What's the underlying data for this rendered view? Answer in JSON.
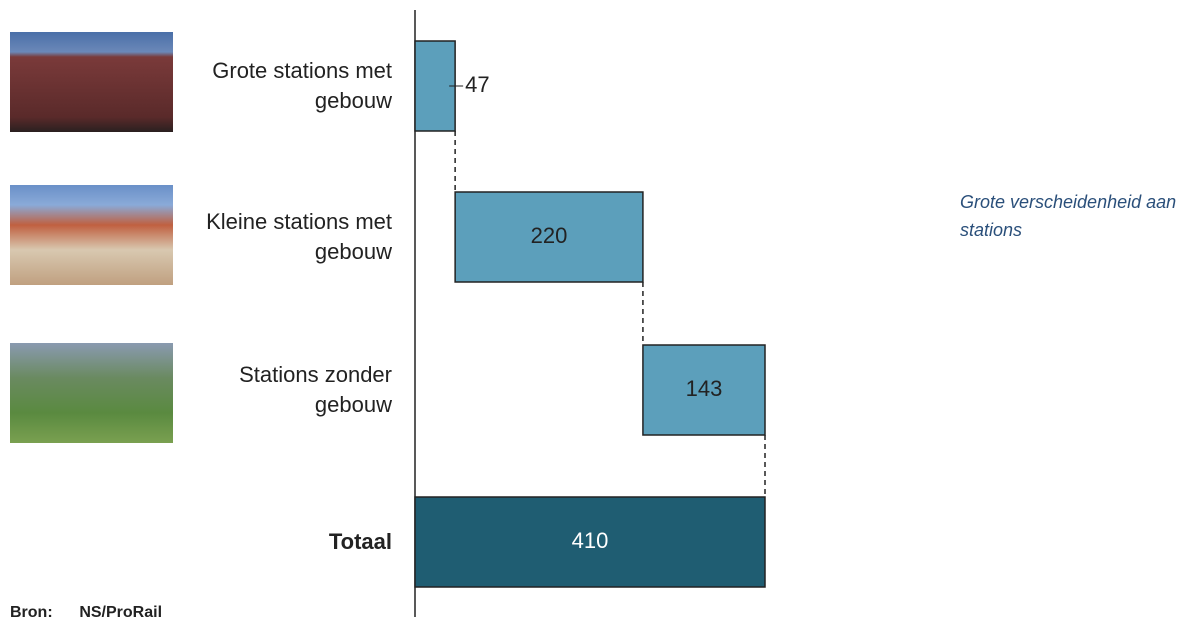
{
  "chart_data": {
    "type": "waterfall",
    "categories": [
      "Grote stations met gebouw",
      "Kleine stations met gebouw",
      "Stations zonder gebouw",
      "Totaal"
    ],
    "values": [
      47,
      220,
      143,
      410
    ],
    "colors": [
      "#5c9fbb",
      "#5c9fbb",
      "#5c9fbb",
      "#1f5d72"
    ],
    "annotation": "Grote verscheidenheid aan stations",
    "source": "Bron:      NS/ProRail"
  }
}
